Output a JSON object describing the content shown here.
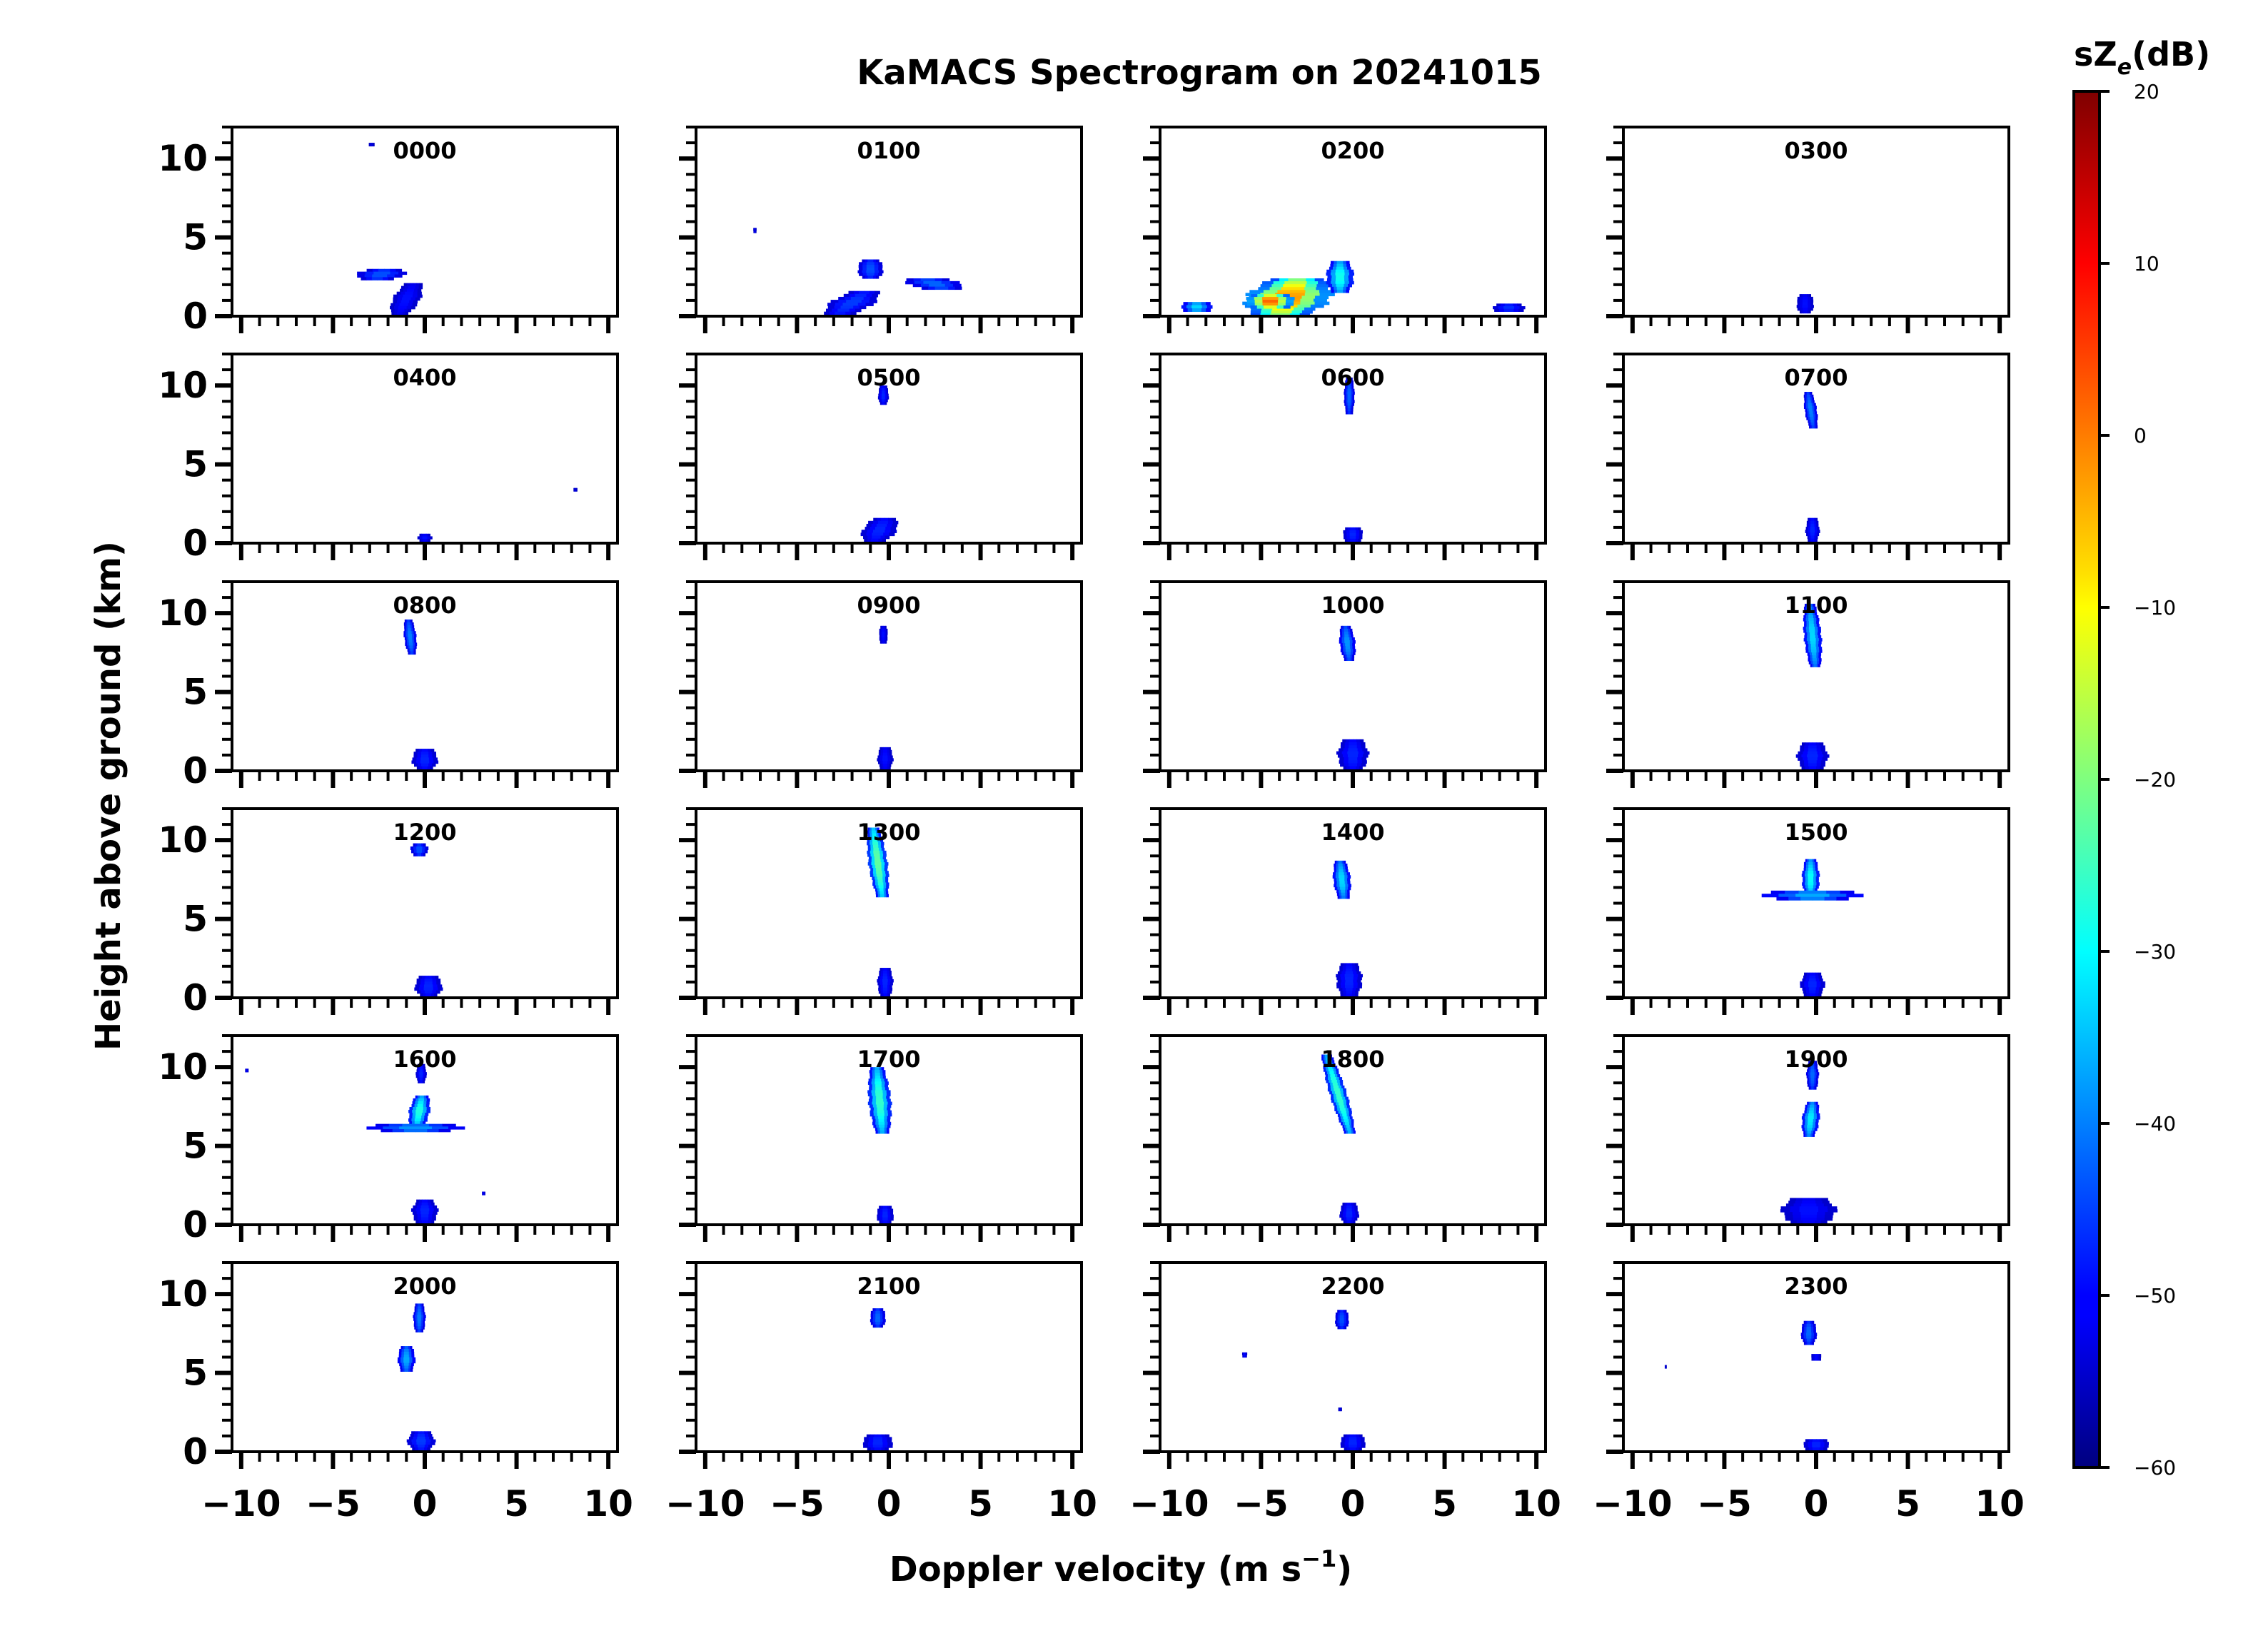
{
  "chart_data": {
    "type": "heatmap",
    "title": "KaMACS Spectrogram on 20241015",
    "xlabel": "Doppler velocity (m s",
    "xlabel_sup": "−1",
    "xlabel_close": ")",
    "ylabel": "Height above ground (km)",
    "xlim": [
      -10.5,
      10.5
    ],
    "ylim": [
      0,
      12
    ],
    "xticks": [
      -10,
      -5,
      0,
      5,
      10
    ],
    "xtick_labels": [
      "−10",
      "−5",
      "0",
      "5",
      "10"
    ],
    "yticks": [
      0,
      5,
      10
    ],
    "ytick_labels": [
      "0",
      "5",
      "10"
    ],
    "grid": false,
    "colorbar": {
      "label_main": "sZ",
      "label_sub": "e",
      "label_unit": "(dB)",
      "range": [
        -60,
        20
      ],
      "ticks": [
        20,
        10,
        0,
        -10,
        -20,
        -30,
        -40,
        -50,
        -60
      ],
      "tick_labels": [
        "20",
        "10",
        "0",
        "−10",
        "−20",
        "−30",
        "−40",
        "−50",
        "−60"
      ],
      "colormap": "jet"
    },
    "panels": [
      {
        "label": "0000",
        "blobs": [
          {
            "v": -2.4,
            "h0": 2.3,
            "h1": 3.0,
            "w": 2.8,
            "shift": 0.5,
            "peak": -42
          },
          {
            "v": -1.0,
            "h0": 0.1,
            "h1": 2.1,
            "w": 1.6,
            "shift": 0.8,
            "peak": -48
          },
          {
            "v": -2.9,
            "h0": 10.8,
            "h1": 11.0,
            "w": 0.3,
            "shift": 0,
            "peak": -52
          }
        ]
      },
      {
        "label": "0100",
        "blobs": [
          {
            "v": -1.0,
            "h0": 2.4,
            "h1": 3.6,
            "w": 1.5,
            "shift": 0,
            "peak": -42
          },
          {
            "v": 2.5,
            "h0": 1.7,
            "h1": 2.4,
            "w": 3.2,
            "shift": -1.0,
            "peak": -40
          },
          {
            "v": -2.0,
            "h0": 0.1,
            "h1": 1.6,
            "w": 2.6,
            "shift": 1.5,
            "peak": -44
          },
          {
            "v": -7.3,
            "h0": 5.3,
            "h1": 5.6,
            "w": 0.2,
            "shift": 0,
            "peak": -50
          }
        ]
      },
      {
        "label": "0200",
        "blobs": [
          {
            "v": -3.5,
            "h0": 0.0,
            "h1": 2.4,
            "w": 5.0,
            "shift": 1.0,
            "peak": 5
          },
          {
            "v": -4.5,
            "h0": 0.5,
            "h1": 1.4,
            "w": 3.0,
            "shift": 0,
            "peak": 10
          },
          {
            "v": -0.7,
            "h0": 1.5,
            "h1": 3.5,
            "w": 1.6,
            "shift": 0,
            "peak": -25
          },
          {
            "v": -8.5,
            "h0": 0.3,
            "h1": 0.9,
            "w": 2.0,
            "shift": 0,
            "peak": -30
          },
          {
            "v": 8.5,
            "h0": 0.3,
            "h1": 0.8,
            "w": 2.0,
            "shift": 0,
            "peak": -45
          }
        ]
      },
      {
        "label": "0300",
        "blobs": [
          {
            "v": -0.6,
            "h0": 0.2,
            "h1": 1.4,
            "w": 1.0,
            "shift": 0,
            "peak": -48
          }
        ]
      },
      {
        "label": "0400",
        "blobs": [
          {
            "v": 0.0,
            "h0": 0.1,
            "h1": 0.6,
            "w": 0.8,
            "shift": 0,
            "peak": -48
          },
          {
            "v": 8.2,
            "h0": 3.3,
            "h1": 3.5,
            "w": 0.2,
            "shift": 0,
            "peak": -52
          }
        ]
      },
      {
        "label": "0500",
        "blobs": [
          {
            "v": -0.5,
            "h0": 0.1,
            "h1": 1.6,
            "w": 2.0,
            "shift": 0.6,
            "peak": -46
          },
          {
            "v": -0.3,
            "h0": 8.8,
            "h1": 10.0,
            "w": 0.6,
            "shift": 0,
            "peak": -46
          }
        ]
      },
      {
        "label": "0600",
        "blobs": [
          {
            "v": -0.2,
            "h0": 8.2,
            "h1": 10.5,
            "w": 0.6,
            "shift": 0,
            "peak": -40
          },
          {
            "v": 0.0,
            "h0": 0.1,
            "h1": 1.0,
            "w": 1.2,
            "shift": 0,
            "peak": -46
          }
        ]
      },
      {
        "label": "0700",
        "blobs": [
          {
            "v": -0.3,
            "h0": 7.3,
            "h1": 9.6,
            "w": 0.7,
            "shift": -0.3,
            "peak": -38
          },
          {
            "v": -0.2,
            "h0": 0.1,
            "h1": 1.6,
            "w": 0.8,
            "shift": 0,
            "peak": -46
          }
        ]
      },
      {
        "label": "0800",
        "blobs": [
          {
            "v": -0.8,
            "h0": 7.4,
            "h1": 9.6,
            "w": 0.7,
            "shift": -0.2,
            "peak": -38
          },
          {
            "v": 0.0,
            "h0": 0.1,
            "h1": 1.4,
            "w": 1.5,
            "shift": 0,
            "peak": -46
          }
        ]
      },
      {
        "label": "0900",
        "blobs": [
          {
            "v": -0.3,
            "h0": 8.1,
            "h1": 9.2,
            "w": 0.5,
            "shift": 0,
            "peak": -48
          },
          {
            "v": -0.2,
            "h0": 0.1,
            "h1": 1.5,
            "w": 0.9,
            "shift": 0,
            "peak": -48
          }
        ]
      },
      {
        "label": "1000",
        "blobs": [
          {
            "v": -0.3,
            "h0": 7.0,
            "h1": 9.2,
            "w": 0.9,
            "shift": -0.2,
            "peak": -36
          },
          {
            "v": 0.0,
            "h0": 0.1,
            "h1": 2.0,
            "w": 1.8,
            "shift": 0,
            "peak": -46
          }
        ]
      },
      {
        "label": "1100",
        "blobs": [
          {
            "v": -0.2,
            "h0": 6.6,
            "h1": 10.6,
            "w": 1.0,
            "shift": -0.3,
            "peak": -30
          },
          {
            "v": -0.2,
            "h0": 0.1,
            "h1": 1.8,
            "w": 1.8,
            "shift": 0,
            "peak": -46
          }
        ]
      },
      {
        "label": "1200",
        "blobs": [
          {
            "v": -0.3,
            "h0": 9.0,
            "h1": 9.8,
            "w": 1.0,
            "shift": 0,
            "peak": -42
          },
          {
            "v": 0.2,
            "h0": 0.1,
            "h1": 1.4,
            "w": 1.6,
            "shift": 0,
            "peak": -46
          }
        ]
      },
      {
        "label": "1300",
        "blobs": [
          {
            "v": -0.6,
            "h0": 6.4,
            "h1": 10.8,
            "w": 1.1,
            "shift": -0.5,
            "peak": -18
          },
          {
            "v": -0.2,
            "h0": 0.1,
            "h1": 1.9,
            "w": 0.9,
            "shift": 0,
            "peak": -46
          }
        ]
      },
      {
        "label": "1400",
        "blobs": [
          {
            "v": -0.6,
            "h0": 6.3,
            "h1": 8.7,
            "w": 1.0,
            "shift": -0.2,
            "peak": -30
          },
          {
            "v": -0.2,
            "h0": 0.1,
            "h1": 2.2,
            "w": 1.5,
            "shift": 0,
            "peak": -46
          }
        ]
      },
      {
        "label": "1500",
        "blobs": [
          {
            "v": -0.3,
            "h0": 6.4,
            "h1": 8.8,
            "w": 1.0,
            "shift": 0,
            "peak": -26
          },
          {
            "v": -0.2,
            "h0": 6.2,
            "h1": 6.8,
            "w": 5.8,
            "shift": 0,
            "peak": -34
          },
          {
            "v": -0.2,
            "h0": 0.1,
            "h1": 1.6,
            "w": 1.4,
            "shift": 0,
            "peak": -46
          }
        ]
      },
      {
        "label": "1600",
        "blobs": [
          {
            "v": -0.3,
            "h0": 6.2,
            "h1": 8.2,
            "w": 1.2,
            "shift": 0.3,
            "peak": -24
          },
          {
            "v": -0.5,
            "h0": 5.9,
            "h1": 6.4,
            "w": 5.6,
            "shift": 0,
            "peak": -36
          },
          {
            "v": -0.2,
            "h0": 9.0,
            "h1": 10.2,
            "w": 0.6,
            "shift": 0,
            "peak": -46
          },
          {
            "v": 0.0,
            "h0": 0.1,
            "h1": 1.6,
            "w": 1.5,
            "shift": 0,
            "peak": -46
          },
          {
            "v": -9.7,
            "h0": 9.7,
            "h1": 9.9,
            "w": 0.2,
            "shift": 0,
            "peak": -50
          },
          {
            "v": 3.2,
            "h0": 1.9,
            "h1": 2.1,
            "w": 0.2,
            "shift": 0,
            "peak": -50
          }
        ]
      },
      {
        "label": "1700",
        "blobs": [
          {
            "v": -0.5,
            "h0": 5.8,
            "h1": 10.0,
            "w": 1.3,
            "shift": -0.3,
            "peak": -22
          },
          {
            "v": -0.2,
            "h0": 0.1,
            "h1": 1.2,
            "w": 1.0,
            "shift": 0,
            "peak": -46
          }
        ]
      },
      {
        "label": "1800",
        "blobs": [
          {
            "v": -0.8,
            "h0": 5.8,
            "h1": 10.8,
            "w": 1.0,
            "shift": -1.3,
            "peak": -22
          },
          {
            "v": -0.2,
            "h0": 0.1,
            "h1": 1.4,
            "w": 1.1,
            "shift": 0,
            "peak": -46
          }
        ]
      },
      {
        "label": "1900",
        "blobs": [
          {
            "v": -0.3,
            "h0": 5.6,
            "h1": 7.8,
            "w": 1.0,
            "shift": 0.2,
            "peak": -28
          },
          {
            "v": -0.2,
            "h0": 8.6,
            "h1": 10.4,
            "w": 0.7,
            "shift": 0,
            "peak": -40
          },
          {
            "v": -0.4,
            "h0": 0.1,
            "h1": 1.7,
            "w": 3.2,
            "shift": 0,
            "peak": -48
          }
        ]
      },
      {
        "label": "2000",
        "blobs": [
          {
            "v": -1.0,
            "h0": 5.1,
            "h1": 6.7,
            "w": 1.0,
            "shift": 0,
            "peak": -34
          },
          {
            "v": -0.3,
            "h0": 7.6,
            "h1": 9.4,
            "w": 0.7,
            "shift": 0,
            "peak": -38
          },
          {
            "v": -0.2,
            "h0": 0.1,
            "h1": 1.3,
            "w": 1.6,
            "shift": 0,
            "peak": -44
          }
        ]
      },
      {
        "label": "2100",
        "blobs": [
          {
            "v": -0.6,
            "h0": 7.9,
            "h1": 9.1,
            "w": 0.9,
            "shift": 0,
            "peak": -40
          },
          {
            "v": -0.6,
            "h0": 0.1,
            "h1": 1.1,
            "w": 1.8,
            "shift": 0,
            "peak": -46
          }
        ]
      },
      {
        "label": "2200",
        "blobs": [
          {
            "v": -0.6,
            "h0": 7.8,
            "h1": 9.0,
            "w": 0.8,
            "shift": 0,
            "peak": -42
          },
          {
            "v": 0.0,
            "h0": 0.1,
            "h1": 1.1,
            "w": 1.5,
            "shift": 0,
            "peak": -46
          },
          {
            "v": -5.9,
            "h0": 6.0,
            "h1": 6.3,
            "w": 0.3,
            "shift": 0,
            "peak": -48
          },
          {
            "v": -0.7,
            "h0": 2.6,
            "h1": 2.8,
            "w": 0.2,
            "shift": 0,
            "peak": -52
          }
        ]
      },
      {
        "label": "2300",
        "blobs": [
          {
            "v": -0.4,
            "h0": 6.8,
            "h1": 8.3,
            "w": 0.9,
            "shift": 0,
            "peak": -40
          },
          {
            "v": 0.0,
            "h0": 5.8,
            "h1": 6.2,
            "w": 0.6,
            "shift": 0,
            "peak": -48
          },
          {
            "v": 0.0,
            "h0": 0.1,
            "h1": 0.8,
            "w": 1.6,
            "shift": 0,
            "peak": -46
          },
          {
            "v": -8.2,
            "h0": 5.3,
            "h1": 5.5,
            "w": 0.1,
            "shift": 0,
            "peak": -52
          }
        ]
      }
    ]
  }
}
